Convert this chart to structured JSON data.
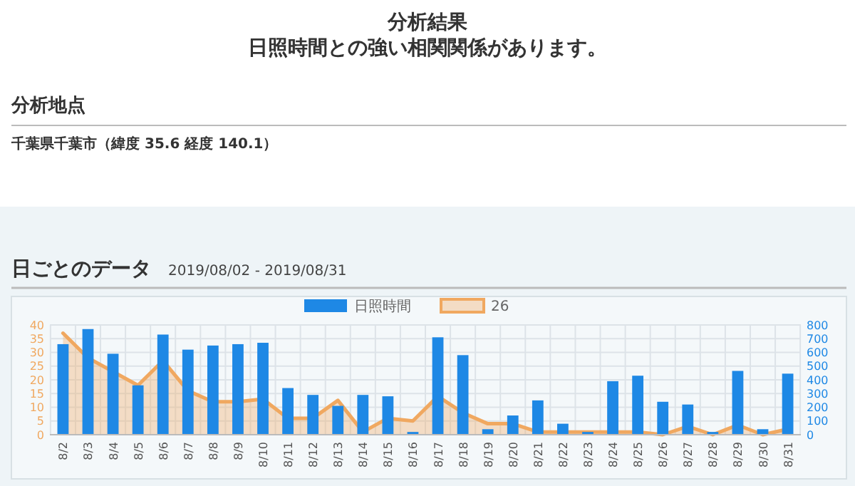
{
  "chart_data": {
    "type": "bar",
    "title": "分析結果",
    "subtitle": "日照時間との強い相関関係があります。",
    "annotations": [
      "分析地点",
      "千葉県千葉市（緯度 35.6 経度 140.1）",
      "日ごとのデータ",
      "2019/08/02 - 2019/08/31"
    ],
    "categories": [
      "8/2",
      "8/3",
      "8/4",
      "8/5",
      "8/6",
      "8/7",
      "8/8",
      "8/9",
      "8/10",
      "8/11",
      "8/12",
      "8/13",
      "8/14",
      "8/15",
      "8/16",
      "8/17",
      "8/18",
      "8/19",
      "8/20",
      "8/21",
      "8/22",
      "8/23",
      "8/24",
      "8/25",
      "8/26",
      "8/27",
      "8/28",
      "8/29",
      "8/30",
      "8/31"
    ],
    "series": [
      {
        "name": "日照時間",
        "axis": "y2",
        "color": "#1e88e5",
        "values": [
          660,
          770,
          590,
          360,
          730,
          620,
          650,
          660,
          670,
          340,
          290,
          210,
          290,
          280,
          20,
          710,
          580,
          40,
          140,
          250,
          80,
          20,
          390,
          430,
          240,
          220,
          20,
          465,
          40,
          445
        ]
      },
      {
        "name": "26",
        "type": "area",
        "color": "#f0a860",
        "values": [
          37,
          28,
          23,
          18,
          27,
          16,
          12,
          12,
          13,
          6,
          6,
          12.5,
          1,
          6,
          5,
          14,
          8,
          4,
          4,
          1,
          1,
          1,
          1,
          1,
          0,
          3,
          0,
          3.5,
          0,
          2
        ]
      }
    ],
    "ylim": [
      0,
      40
    ],
    "yticks": [
      0,
      5,
      10,
      15,
      20,
      25,
      30,
      35,
      40
    ],
    "y2lim": [
      0,
      800
    ],
    "y2ticks": [
      0,
      100,
      200,
      300,
      400,
      500,
      600,
      700,
      800
    ],
    "grid": true,
    "legend": "top"
  }
}
